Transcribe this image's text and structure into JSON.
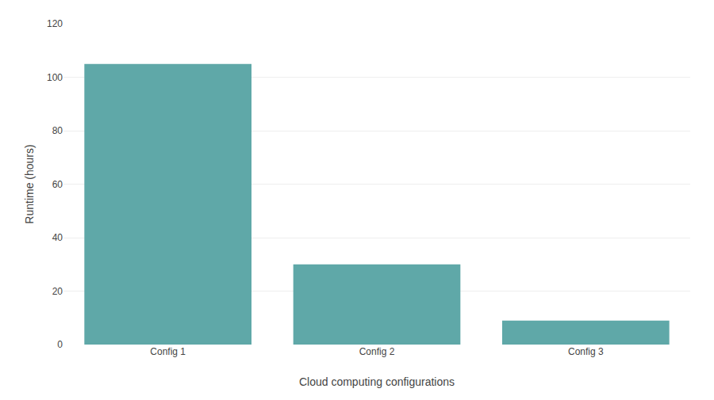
{
  "chart_data": {
    "type": "bar",
    "xlabel": "Cloud computing configurations",
    "ylabel": "Runtime (hours)",
    "categories": [
      "Config 1",
      "Config 2",
      "Config 3"
    ],
    "values": [
      105,
      30,
      9
    ],
    "color": "#5fa8a8",
    "ylim": [
      0,
      120
    ],
    "yticks": [
      0,
      20,
      40,
      60,
      80,
      100,
      120
    ],
    "grid": true
  }
}
